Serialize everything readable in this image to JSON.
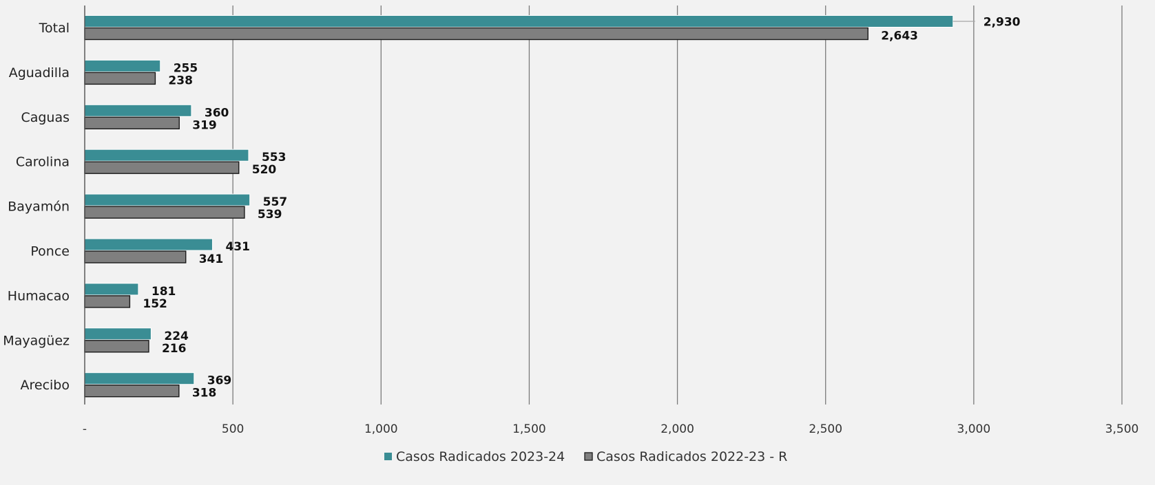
{
  "chart_data": {
    "type": "bar",
    "orientation": "horizontal",
    "categories": [
      "Total",
      "Aguadilla",
      "Caguas",
      "Carolina",
      "Bayamón",
      "Ponce",
      "Humacao",
      "Mayagüez",
      "Arecibo"
    ],
    "series": [
      {
        "name": "Casos Radicados 2023-24",
        "color": "#3a8d94",
        "values": [
          2930,
          255,
          360,
          553,
          557,
          431,
          181,
          224,
          369
        ],
        "labels": [
          "2,930",
          "255",
          "360",
          "553",
          "557",
          "431",
          "181",
          "224",
          "369"
        ]
      },
      {
        "name": "Casos Radicados 2022-23 - R",
        "color": "#7f7f7f",
        "values": [
          2643,
          238,
          319,
          520,
          539,
          341,
          152,
          216,
          318
        ],
        "labels": [
          "2,643",
          "238",
          "319",
          "520",
          "539",
          "341",
          "152",
          "216",
          "318"
        ]
      }
    ],
    "xlim": [
      0,
      3500
    ],
    "xticks": [
      0,
      500,
      1000,
      1500,
      2000,
      2500,
      3000,
      3500
    ],
    "xtick_labels": [
      "-",
      "500",
      "1,000",
      "1,500",
      "2,000",
      "2,500",
      "3,000",
      "3,500"
    ],
    "grid": "vertical",
    "legend_position": "bottom-center",
    "title": "",
    "xlabel": "",
    "ylabel": ""
  }
}
